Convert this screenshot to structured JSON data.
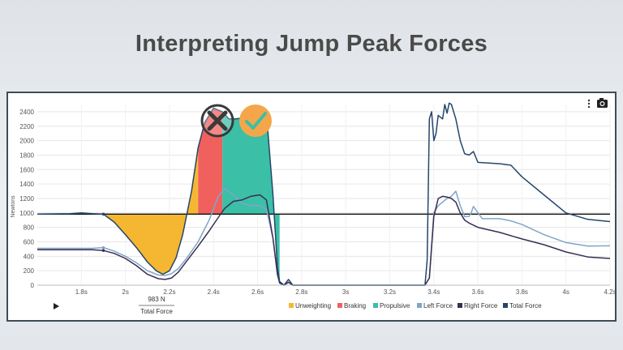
{
  "slide": {
    "title": "Interpreting Jump Peak Forces"
  },
  "toolbar": {
    "menu_icon": "kebab-menu-icon",
    "camera_icon": "camera-icon"
  },
  "markers": {
    "wrong_icon": "x-circle-icon",
    "correct_icon": "check-circle-icon"
  },
  "playback": {
    "icon": "play-icon"
  },
  "tooltip": {
    "value": "983 N",
    "label": "Total Force"
  },
  "colors": {
    "unweighting": "#f5b731",
    "braking": "#f0615e",
    "propulsive": "#3bbfa7",
    "left_force": "#7fa6c8",
    "right_force": "#3a2e52",
    "total_force": "#25466b",
    "wrong_marker": "#3a3a3a",
    "correct_marker": "#f5a64a"
  },
  "chart_data": {
    "type": "line",
    "title": "",
    "xlabel": "",
    "ylabel": "Newtons",
    "xlim": [
      1.6,
      4.2
    ],
    "ylim": [
      0,
      2500
    ],
    "x_ticks": [
      1.8,
      2.0,
      2.2,
      2.4,
      2.6,
      2.8,
      3.0,
      3.2,
      3.4,
      3.6,
      3.8,
      4.0,
      4.2
    ],
    "x_tick_labels": [
      "1.8s",
      "2s",
      "2.2s",
      "2.4s",
      "2.6s",
      "2.8s",
      "3s",
      "3.2s",
      "3.4s",
      "3.6s",
      "3.8s",
      "4s",
      "4.2s"
    ],
    "y_ticks": [
      0,
      200,
      400,
      600,
      800,
      1000,
      1200,
      1400,
      1600,
      1800,
      2000,
      2200,
      2400
    ],
    "y_tick_labels": [
      "0",
      "200",
      "400",
      "600",
      "800",
      "1000",
      "1200",
      "1400",
      "1600",
      "1800",
      "2000",
      "2200",
      "2400"
    ],
    "reference_line": 983,
    "grid": true,
    "legend_position": "bottom",
    "phases": [
      {
        "name": "Unweighting",
        "x_start": 1.86,
        "x_end": 2.33
      },
      {
        "name": "Braking",
        "x_start": 2.33,
        "x_end": 2.44
      },
      {
        "name": "Propulsive",
        "x_start": 2.44,
        "x_end": 2.7
      }
    ],
    "series": [
      {
        "name": "Left Force",
        "x": [
          1.6,
          1.75,
          1.85,
          1.9,
          1.95,
          2.0,
          2.05,
          2.1,
          2.15,
          2.18,
          2.21,
          2.24,
          2.28,
          2.33,
          2.38,
          2.42,
          2.45,
          2.49,
          2.53,
          2.57,
          2.61,
          2.64,
          2.67,
          2.69,
          2.7,
          2.72,
          2.74,
          2.76,
          3.0,
          3.3,
          3.36,
          3.38,
          3.4,
          3.42,
          3.44,
          3.46,
          3.48,
          3.5,
          3.52,
          3.54,
          3.56,
          3.57,
          3.58,
          3.62,
          3.7,
          3.75,
          3.8,
          3.9,
          4.0,
          4.1,
          4.2
        ],
        "y": [
          510,
          510,
          510,
          520,
          470,
          400,
          310,
          200,
          140,
          135,
          160,
          230,
          380,
          600,
          900,
          1220,
          1340,
          1250,
          1130,
          1100,
          1100,
          1050,
          650,
          150,
          30,
          0,
          40,
          0,
          0,
          0,
          0,
          100,
          1000,
          1100,
          1150,
          1200,
          1230,
          1300,
          1100,
          950,
          950,
          1000,
          1090,
          920,
          920,
          890,
          840,
          700,
          590,
          540,
          545
        ]
      },
      {
        "name": "Right Force",
        "x": [
          1.6,
          1.75,
          1.85,
          1.9,
          1.95,
          2.0,
          2.05,
          2.1,
          2.15,
          2.18,
          2.21,
          2.24,
          2.28,
          2.33,
          2.38,
          2.42,
          2.45,
          2.49,
          2.53,
          2.57,
          2.61,
          2.64,
          2.67,
          2.69,
          2.7,
          2.72,
          2.74,
          2.76,
          3.0,
          3.3,
          3.36,
          3.38,
          3.4,
          3.42,
          3.44,
          3.46,
          3.48,
          3.5,
          3.52,
          3.54,
          3.56,
          3.6,
          3.7,
          3.8,
          3.9,
          4.0,
          4.1,
          4.2
        ],
        "y": [
          490,
          490,
          490,
          480,
          440,
          370,
          270,
          150,
          90,
          80,
          100,
          180,
          340,
          540,
          750,
          930,
          1060,
          1160,
          1180,
          1230,
          1250,
          1180,
          650,
          150,
          30,
          0,
          40,
          0,
          0,
          0,
          0,
          100,
          950,
          1200,
          1230,
          1220,
          1200,
          1150,
          1000,
          900,
          860,
          800,
          730,
          640,
          560,
          460,
          390,
          370
        ]
      },
      {
        "name": "Total Force",
        "x": [
          1.6,
          1.75,
          1.8,
          1.85,
          1.9,
          1.95,
          2.0,
          2.05,
          2.1,
          2.14,
          2.17,
          2.2,
          2.23,
          2.26,
          2.3,
          2.33,
          2.36,
          2.4,
          2.44,
          2.47,
          2.5,
          2.55,
          2.6,
          2.64,
          2.67,
          2.69,
          2.7,
          2.72,
          2.74,
          2.76,
          3.0,
          3.3,
          3.36,
          3.37,
          3.38,
          3.39,
          3.4,
          3.41,
          3.42,
          3.44,
          3.45,
          3.46,
          3.47,
          3.48,
          3.5,
          3.52,
          3.54,
          3.56,
          3.58,
          3.6,
          3.7,
          3.75,
          3.8,
          3.9,
          4.0,
          4.1,
          4.2
        ],
        "y": [
          983,
          990,
          1000,
          990,
          983,
          870,
          700,
          520,
          320,
          200,
          150,
          200,
          380,
          700,
          1300,
          1900,
          2250,
          2450,
          2400,
          2300,
          2300,
          2320,
          2330,
          2380,
          1250,
          250,
          50,
          0,
          80,
          0,
          0,
          0,
          0,
          350,
          2300,
          2400,
          2000,
          2100,
          2350,
          2300,
          2500,
          2380,
          2520,
          2500,
          2300,
          2000,
          1820,
          1800,
          1850,
          1700,
          1680,
          1660,
          1500,
          1250,
          1000,
          910,
          880
        ]
      }
    ],
    "legend": [
      "Unweighting",
      "Braking",
      "Propulsive",
      "Left Force",
      "Right Force",
      "Total Force"
    ]
  }
}
